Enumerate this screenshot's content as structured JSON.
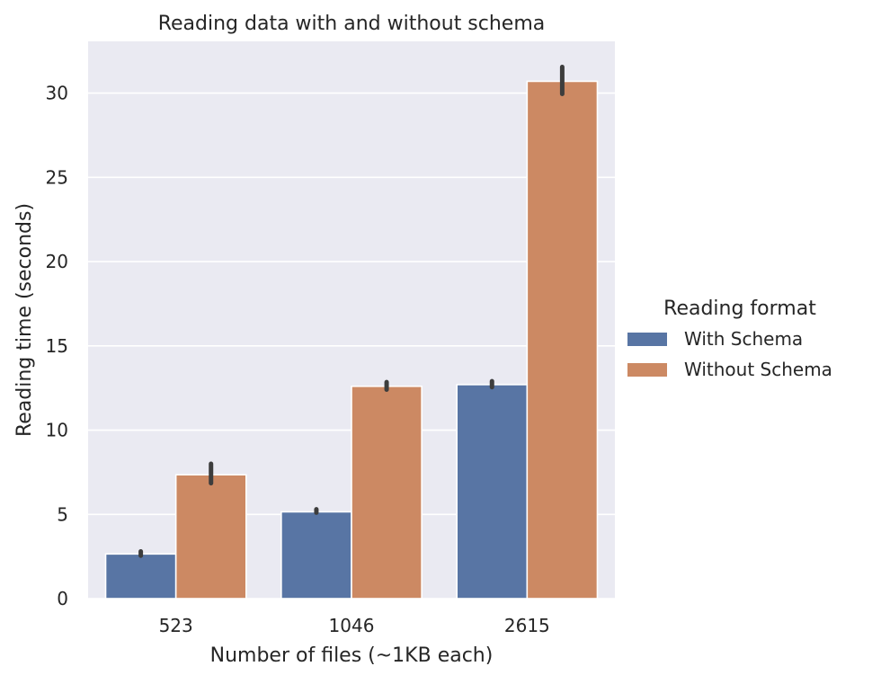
{
  "chart_data": {
    "type": "bar",
    "title": "Reading data with and without schema",
    "xlabel": "Number of files (~1KB each)",
    "ylabel": "Reading time (seconds)",
    "categories": [
      "523",
      "1046",
      "2615"
    ],
    "ylim": [
      0,
      33
    ],
    "yticks": [
      0,
      5,
      10,
      15,
      20,
      25,
      30
    ],
    "grid": true,
    "legend": {
      "title": "Reading format",
      "placement": "right"
    },
    "series": [
      {
        "name": "With Schema",
        "color": "#5875a4",
        "values": [
          2.65,
          5.15,
          12.7
        ],
        "err_low": [
          2.55,
          5.1,
          12.55
        ],
        "err_high": [
          2.8,
          5.3,
          12.9
        ]
      },
      {
        "name": "Without Schema",
        "color": "#cc8963",
        "values": [
          7.35,
          12.6,
          30.7
        ],
        "err_low": [
          6.85,
          12.4,
          29.95
        ],
        "err_high": [
          8.0,
          12.85,
          31.55
        ]
      }
    ]
  }
}
